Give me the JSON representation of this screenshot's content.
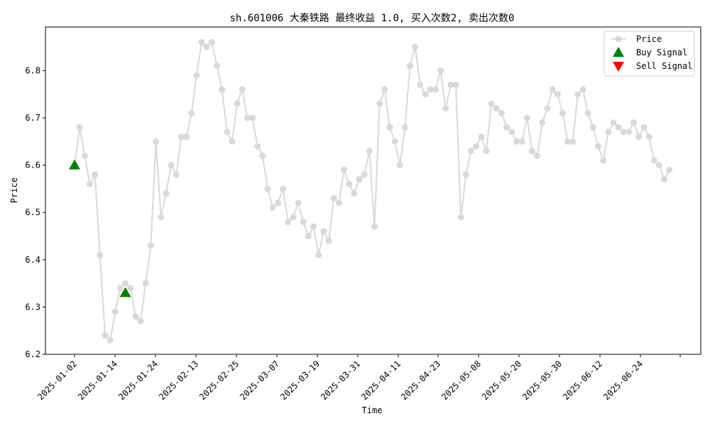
{
  "chart_data": {
    "type": "line",
    "title": "sh.601006 大秦铁路 最终收益 1.0, 买入次数2, 卖出次数0",
    "xlabel": "Time",
    "ylabel": "Price",
    "ylim": [
      6.2,
      6.89
    ],
    "grid": false,
    "legend_position": "top-right",
    "x_tick_labels": [
      "2025-01-02",
      "2025-01-14",
      "2025-01-24",
      "2025-02-13",
      "2025-02-25",
      "2025-03-07",
      "2025-03-19",
      "2025-03-31",
      "2025-04-11",
      "2025-04-23",
      "2025-05-08",
      "2025-05-20",
      "2025-05-30",
      "2025-06-12",
      "2025-06-24"
    ],
    "y_tick_labels": [
      "6.2",
      "6.3",
      "6.4",
      "6.5",
      "6.6",
      "6.7",
      "6.8"
    ],
    "series": [
      {
        "name": "Price",
        "color": "#d9d9d9",
        "values": [
          6.6,
          6.68,
          6.62,
          6.56,
          6.58,
          6.41,
          6.24,
          6.23,
          6.29,
          6.34,
          6.35,
          6.34,
          6.28,
          6.27,
          6.35,
          6.43,
          6.65,
          6.49,
          6.54,
          6.6,
          6.58,
          6.66,
          6.66,
          6.71,
          6.79,
          6.86,
          6.85,
          6.86,
          6.81,
          6.76,
          6.67,
          6.65,
          6.73,
          6.76,
          6.7,
          6.7,
          6.64,
          6.62,
          6.55,
          6.51,
          6.52,
          6.55,
          6.48,
          6.49,
          6.52,
          6.48,
          6.45,
          6.47,
          6.41,
          6.46,
          6.44,
          6.53,
          6.52,
          6.59,
          6.56,
          6.54,
          6.57,
          6.58,
          6.63,
          6.47,
          6.73,
          6.76,
          6.68,
          6.65,
          6.6,
          6.68,
          6.81,
          6.85,
          6.77,
          6.75,
          6.76,
          6.76,
          6.8,
          6.72,
          6.77,
          6.77,
          6.49,
          6.58,
          6.63,
          6.64,
          6.66,
          6.63,
          6.73,
          6.72,
          6.71,
          6.68,
          6.67,
          6.65,
          6.65,
          6.7,
          6.63,
          6.62,
          6.69,
          6.72,
          6.76,
          6.75,
          6.71,
          6.65,
          6.65,
          6.75,
          6.76,
          6.71,
          6.68,
          6.64,
          6.61,
          6.67,
          6.69,
          6.68,
          6.67,
          6.67,
          6.69,
          6.66,
          6.68,
          6.66,
          6.61,
          6.6,
          6.57,
          6.59
        ]
      },
      {
        "name": "Buy Signal",
        "color": "#008000",
        "marker": "triangle-up",
        "points": [
          {
            "index": 0,
            "value": 6.6
          },
          {
            "index": 10,
            "value": 6.33
          }
        ]
      },
      {
        "name": "Sell Signal",
        "color": "#ff0000",
        "marker": "triangle-down",
        "points": []
      }
    ]
  }
}
